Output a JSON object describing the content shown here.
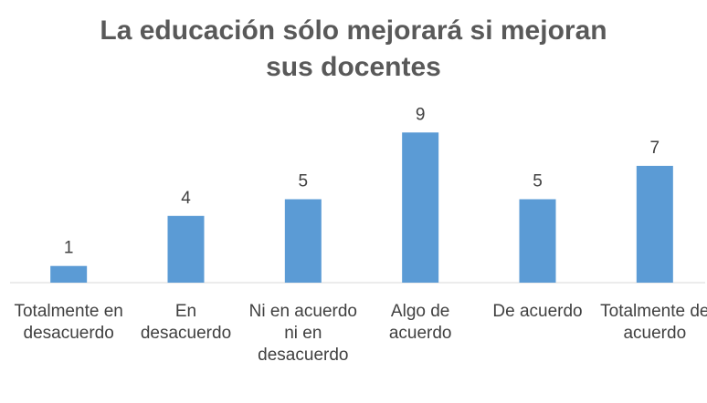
{
  "chart_data": {
    "type": "bar",
    "title": "La educación sólo mejorará si mejoran sus docentes",
    "categories": [
      "Totalmente en desacuerdo",
      "En desacuerdo",
      "Ni en acuerdo ni en desacuerdo",
      "Algo de acuerdo",
      "De acuerdo",
      "Totalmente de acuerdo"
    ],
    "values": [
      1,
      4,
      5,
      9,
      5,
      7
    ],
    "color": "#5b9bd5",
    "ylim": [
      0,
      10
    ],
    "grid": false
  }
}
